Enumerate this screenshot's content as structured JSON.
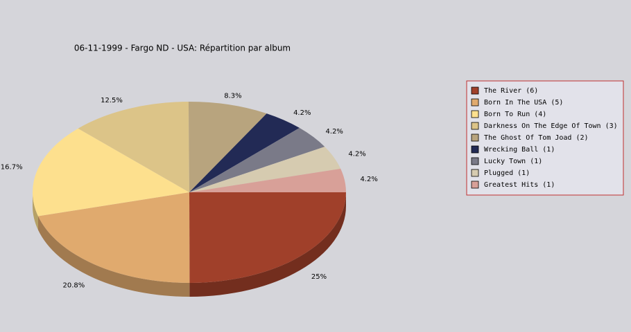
{
  "chart_data": {
    "type": "pie3d",
    "title": "06-11-1999 - Fargo ND - USA:  Répartition par album",
    "categories": [
      "The River (6)",
      "Born In The USA (5)",
      "Born To Run (4)",
      "Darkness On The Edge Of Town (3)",
      "The Ghost Of Tom Joad (2)",
      "Wrecking Ball (1)",
      "Lucky Town (1)",
      "Plugged (1)",
      "Greatest Hits (1)"
    ],
    "values": [
      25,
      20.8,
      16.7,
      12.5,
      8.3,
      4.2,
      4.2,
      4.2,
      4.2
    ],
    "value_labels": [
      "25%",
      "20.8%",
      "16.7%",
      "12.5%",
      "8.3%",
      "4.2%",
      "4.2%",
      "4.2%",
      "4.2%"
    ],
    "colors": [
      "#a0402a",
      "#e0aa6e",
      "#fde08e",
      "#dcc488",
      "#b8a47e",
      "#222a55",
      "#7a7a88",
      "#d6cbb0",
      "#d8a098"
    ]
  }
}
